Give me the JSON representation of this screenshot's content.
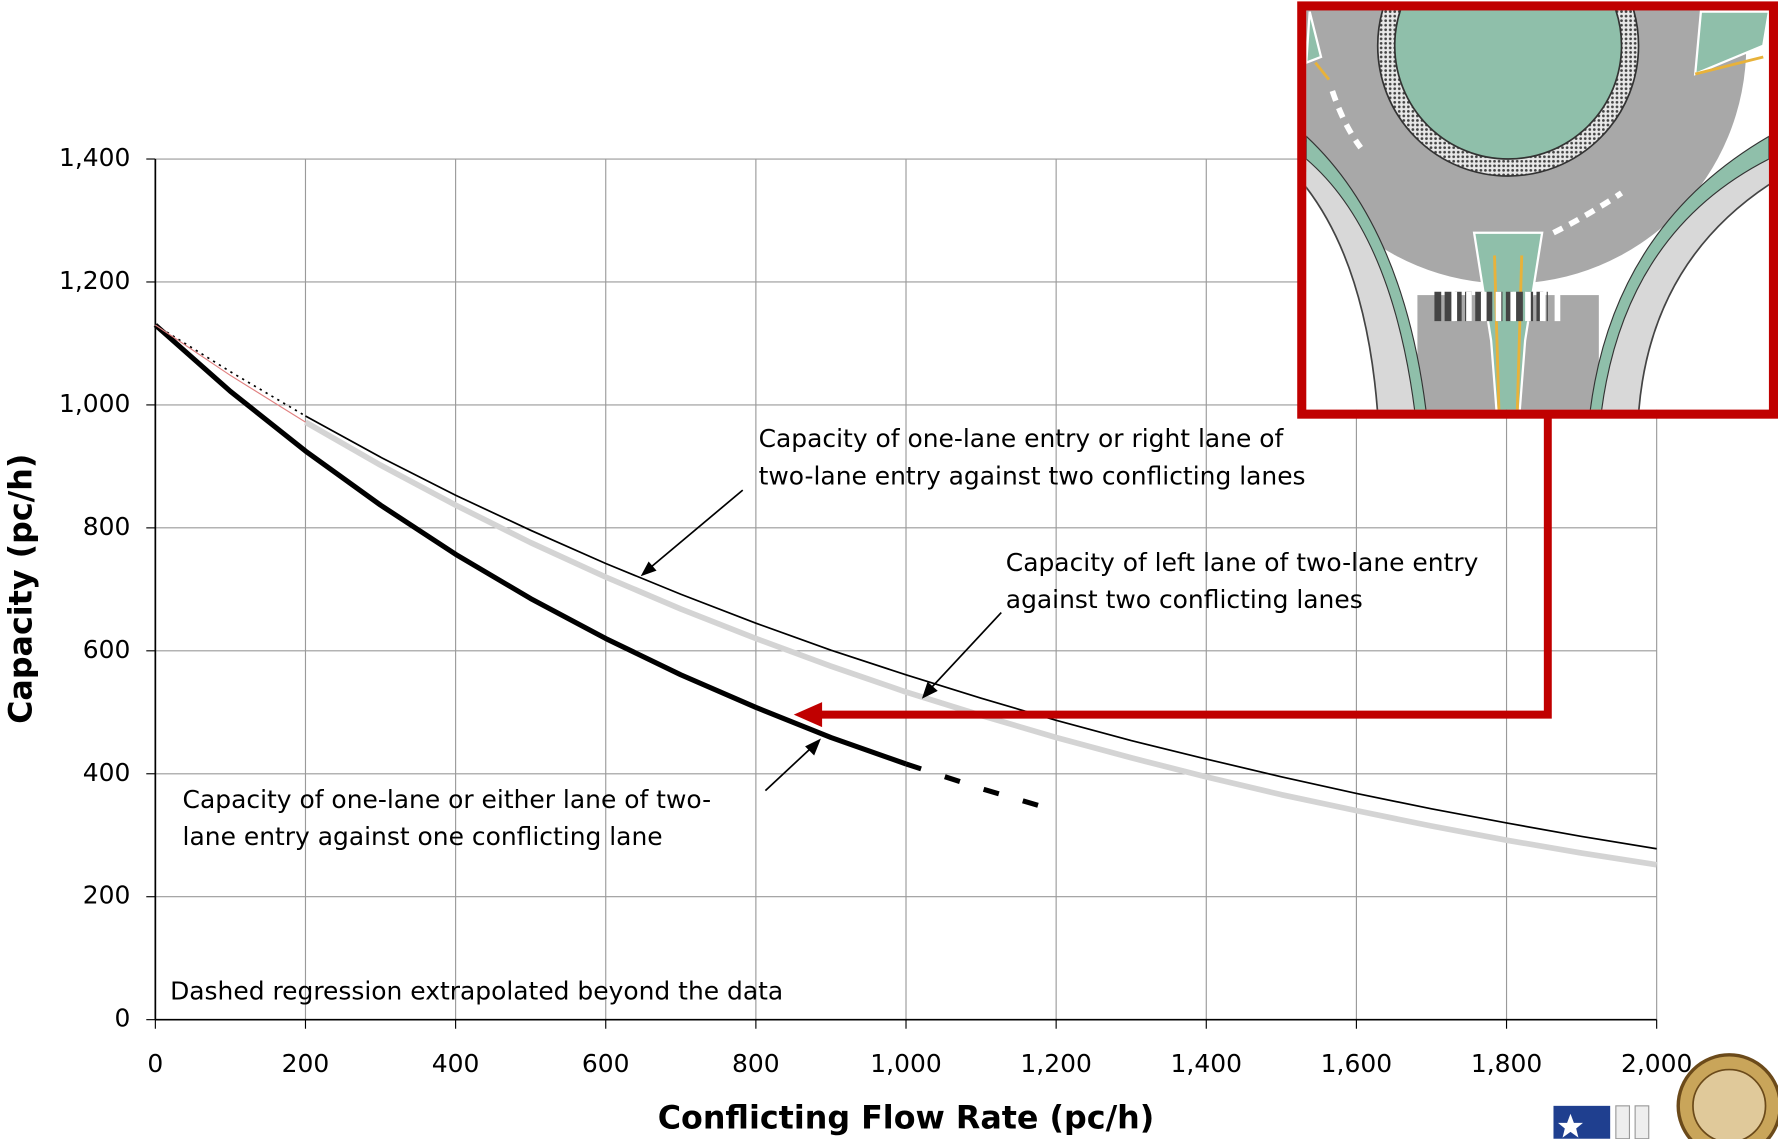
{
  "chart_data": {
    "type": "line",
    "xlabel": "Conflicting Flow Rate (pc/h)",
    "ylabel": "Capacity (pc/h)",
    "x": [
      0,
      100,
      200,
      300,
      400,
      500,
      600,
      700,
      800,
      900,
      1000,
      1100,
      1200,
      1300,
      1400,
      1500,
      1600,
      1700,
      1800,
      1900,
      2000
    ],
    "xlim": [
      0,
      2000
    ],
    "ylim": [
      0,
      1400
    ],
    "xticks": [
      0,
      200,
      400,
      600,
      800,
      {
        "value": 1000,
        "label": "1,000"
      },
      {
        "value": 1200,
        "label": "1,200"
      },
      {
        "value": 1400,
        "label": "1,400"
      },
      {
        "value": 1600,
        "label": "1,600"
      },
      {
        "value": 1800,
        "label": "1,800"
      },
      {
        "value": 2000,
        "label": "2,000"
      }
    ],
    "yticks": [
      0,
      200,
      400,
      600,
      800,
      {
        "value": 1000,
        "label": "1,000"
      },
      {
        "value": 1200,
        "label": "1,200"
      },
      {
        "value": 1400,
        "label": "1,400"
      }
    ],
    "grid": true,
    "series": [
      {
        "color": "#000000",
        "line_width": 4.5,
        "dash": "none",
        "values": [
          1130,
          1022,
          925,
          837,
          757,
          685,
          620,
          561,
          508,
          459,
          416,
          null,
          null,
          null,
          null,
          null,
          null,
          null,
          null,
          null,
          null
        ]
      },
      {
        "color": "#000000",
        "line_width": 4.5,
        "dash": "14,22",
        "values": [
          null,
          null,
          null,
          null,
          null,
          null,
          null,
          null,
          null,
          null,
          416,
          376,
          340,
          null,
          null,
          null,
          null,
          null,
          null,
          null,
          null
        ]
      },
      {
        "color": "#000000",
        "line_width": 1.5,
        "dash": "2,4",
        "values": [
          1130,
          1054,
          982,
          null,
          null,
          null,
          null,
          null,
          null,
          null,
          null,
          null,
          null,
          null,
          null,
          null,
          null,
          null,
          null,
          null,
          null
        ]
      },
      {
        "color": "#000000",
        "line_width": 1.5,
        "dash": "none",
        "values": [
          null,
          null,
          982,
          915,
          853,
          796,
          742,
          692,
          645,
          601,
          561,
          523,
          487,
          454,
          424,
          395,
          368,
          343,
          320,
          298,
          278
        ]
      },
      {
        "color": "#d4d4d4",
        "line_width": 5,
        "dash": "none",
        "values": [
          null,
          null,
          972,
          902,
          837,
          776,
          720,
          668,
          620,
          575,
          533,
          495,
          459,
          426,
          395,
          366,
          340,
          315,
          292,
          271,
          252
        ]
      },
      {
        "color": "#e08080",
        "line_width": 1,
        "dash": "none",
        "values": [
          1130,
          1048,
          972,
          null,
          null,
          null,
          null,
          null,
          null,
          null,
          null,
          null,
          null,
          null,
          null,
          null,
          null,
          null,
          null,
          null,
          null
        ]
      }
    ],
    "annotations": [
      [
        "Capacity of one-lane entry or right lane of",
        "two-lane entry against two conflicting lanes"
      ],
      [
        "Capacity of left lane of two-lane entry",
        "against two conflicting lanes"
      ],
      [
        "Capacity of one-lane or either lane of two-",
        "lane entry against one conflicting lane"
      ]
    ],
    "note": "Dashed regression extrapolated beyond the data"
  }
}
